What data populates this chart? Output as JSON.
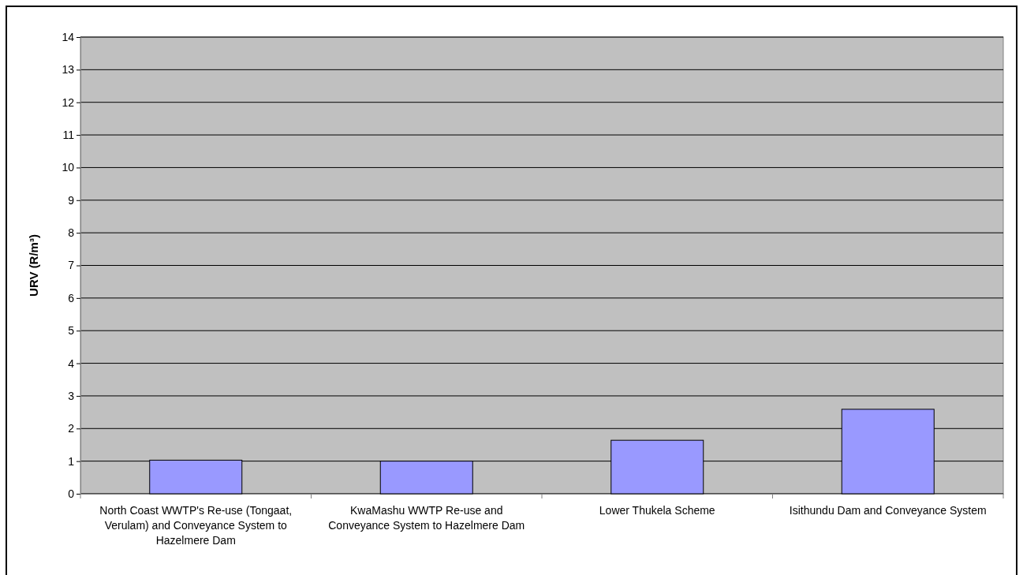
{
  "chart_data": {
    "type": "bar",
    "categories": [
      "North Coast WWTP's Re-use (Tongaat, Verulam) and Conveyance System to Hazelmere Dam",
      "KwaMashu WWTP Re-use and Conveyance System to Hazelmere Dam",
      "Lower Thukela Scheme",
      "Isithundu Dam and Conveyance System"
    ],
    "values": [
      1.03,
      1.0,
      1.64,
      2.59
    ],
    "color": "#9999ff",
    "ylabel": "URV (R/m³)",
    "ylim": [
      0,
      14
    ],
    "yticks": [
      0,
      1,
      2,
      3,
      4,
      5,
      6,
      7,
      8,
      9,
      10,
      11,
      12,
      13,
      14
    ],
    "grid": "y"
  }
}
